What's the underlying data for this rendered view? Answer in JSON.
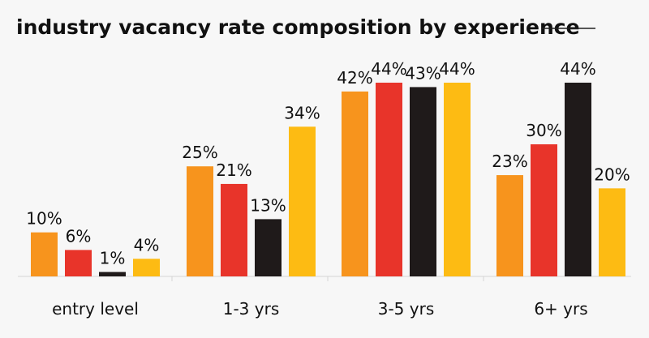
{
  "chart_data": {
    "type": "bar",
    "title": "industry vacancy rate composition by experience",
    "categories": [
      "entry level",
      "1-3 yrs",
      "3-5 yrs",
      "6+ yrs"
    ],
    "series": [
      {
        "values": [
          10,
          25,
          42,
          23
        ],
        "color": "#f7941d"
      },
      {
        "values": [
          6,
          21,
          44,
          30
        ],
        "color": "#e8342a"
      },
      {
        "values": [
          1,
          13,
          43,
          44
        ],
        "color": "#1f1a1a"
      },
      {
        "values": [
          4,
          34,
          44,
          20
        ],
        "color": "#fdbb13"
      }
    ],
    "value_suffix": "%",
    "ylim": [
      0,
      44
    ],
    "grid": false,
    "legend": "none"
  }
}
